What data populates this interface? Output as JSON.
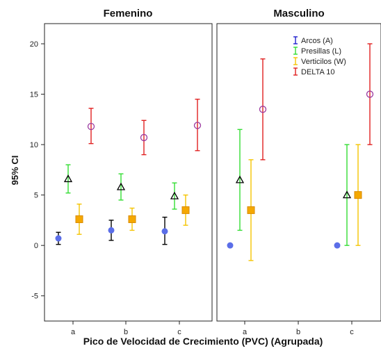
{
  "chart_data": {
    "type": "errorbar",
    "xlabel": "Pico de Velocidad de Crecimiento (PVC) (Agrupada)",
    "ylabel": "95% CI",
    "categories": [
      "a",
      "b",
      "c"
    ],
    "ylim": [
      -7.5,
      22
    ],
    "yticks": [
      -5,
      0,
      5,
      10,
      15,
      20
    ],
    "grid": false,
    "legend_position": "top-right (Masculino panel)",
    "legend": [
      {
        "series": "arcos",
        "label": "Arcos (A)",
        "color": "#1f1fcc",
        "marker": "circle-filled"
      },
      {
        "series": "presillas",
        "label": "Presillas (L)",
        "color": "#33dd33",
        "marker": "triangle"
      },
      {
        "series": "verticilos",
        "label": "Verticilos (W)",
        "color": "#f5c400",
        "marker": "square"
      },
      {
        "series": "delta10",
        "label": "DELTA 10",
        "color": "#e02020",
        "marker": "circle-open"
      }
    ],
    "series_colors": {
      "arcos": {
        "bar": "#000000",
        "marker": "#5b6ee8"
      },
      "presillas": {
        "bar": "#33dd33",
        "marker": "#000000"
      },
      "verticilos": {
        "bar": "#f5c400",
        "marker": "#f5a000"
      },
      "delta10": {
        "bar": "#e02020",
        "marker": "#9b3aa0"
      }
    },
    "panels": [
      {
        "title": "Femenino",
        "series": [
          {
            "key": "arcos",
            "points": [
              {
                "x": "a",
                "mean": 0.7,
                "low": 0.1,
                "high": 1.3
              },
              {
                "x": "b",
                "mean": 1.5,
                "low": 0.5,
                "high": 2.5
              },
              {
                "x": "c",
                "mean": 1.4,
                "low": 0.1,
                "high": 2.8
              }
            ]
          },
          {
            "key": "presillas",
            "points": [
              {
                "x": "a",
                "mean": 6.6,
                "low": 5.2,
                "high": 8.0
              },
              {
                "x": "b",
                "mean": 5.8,
                "low": 4.5,
                "high": 7.1
              },
              {
                "x": "c",
                "mean": 4.9,
                "low": 3.6,
                "high": 6.2
              }
            ]
          },
          {
            "key": "verticilos",
            "points": [
              {
                "x": "a",
                "mean": 2.6,
                "low": 1.1,
                "high": 4.1
              },
              {
                "x": "b",
                "mean": 2.6,
                "low": 1.5,
                "high": 3.7
              },
              {
                "x": "c",
                "mean": 3.5,
                "low": 2.0,
                "high": 5.0
              }
            ]
          },
          {
            "key": "delta10",
            "points": [
              {
                "x": "a",
                "mean": 11.8,
                "low": 10.1,
                "high": 13.6
              },
              {
                "x": "b",
                "mean": 10.7,
                "low": 9.0,
                "high": 12.4
              },
              {
                "x": "c",
                "mean": 11.9,
                "low": 9.4,
                "high": 14.5
              }
            ]
          }
        ]
      },
      {
        "title": "Masculino",
        "series": [
          {
            "key": "arcos",
            "points": [
              {
                "x": "a",
                "mean": 0.0,
                "low": null,
                "high": null
              },
              {
                "x": "c",
                "mean": 0.0,
                "low": null,
                "high": null
              }
            ]
          },
          {
            "key": "presillas",
            "points": [
              {
                "x": "a",
                "mean": 6.5,
                "low": 1.5,
                "high": 11.5
              },
              {
                "x": "c",
                "mean": 5.0,
                "low": 0.0,
                "high": 10.0
              }
            ]
          },
          {
            "key": "verticilos",
            "points": [
              {
                "x": "a",
                "mean": 3.5,
                "low": -1.5,
                "high": 8.5
              },
              {
                "x": "c",
                "mean": 5.0,
                "low": 0.0,
                "high": 10.0
              }
            ]
          },
          {
            "key": "delta10",
            "points": [
              {
                "x": "a",
                "mean": 13.5,
                "low": 8.5,
                "high": 18.5
              },
              {
                "x": "c",
                "mean": 15.0,
                "low": 10.0,
                "high": 20.0
              }
            ]
          }
        ]
      }
    ]
  }
}
